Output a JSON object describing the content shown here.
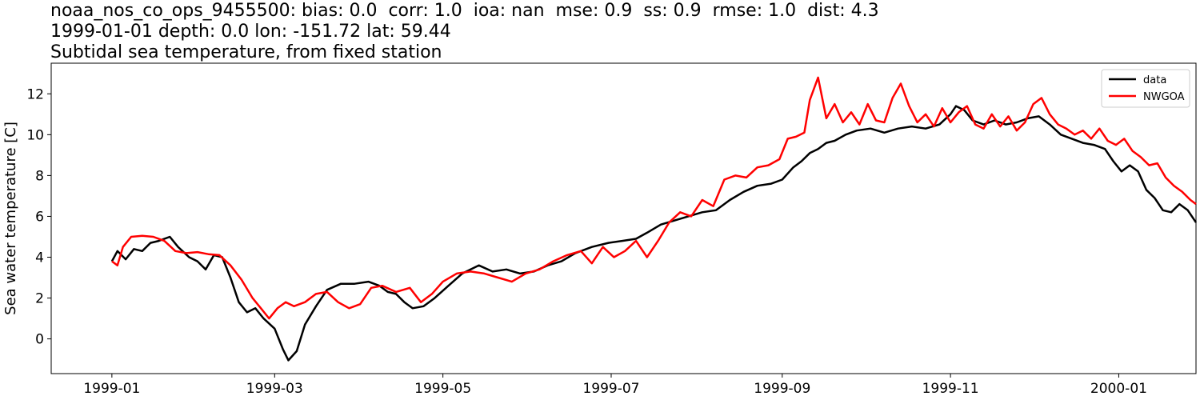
{
  "title_lines": [
    "noaa_nos_co_ops_9455500: bias: 0.0  corr: 1.0  ioa: nan  mse: 0.9  ss: 0.9  rmse: 1.0  dist: 4.3",
    "1999-01-01 depth: 0.0 lon: -151.72 lat: 59.44",
    "Subtidal sea temperature, from fixed station"
  ],
  "chart_data": {
    "type": "line",
    "title": "noaa_nos_co_ops_9455500: bias: 0.0  corr: 1.0  ioa: nan  mse: 0.9  ss: 0.9  rmse: 1.0  dist: 4.3\n1999-01-01 depth: 0.0 lon: -151.72 lat: 59.44\nSubtidal sea temperature, from fixed station",
    "xlabel": "",
    "ylabel": "Sea water temperature [C]",
    "xlim": [
      "1998-12-10",
      "2000-01-29"
    ],
    "ylim": [
      -1.7,
      13.5
    ],
    "x_ticks": [
      "1999-01",
      "1999-03",
      "1999-05",
      "1999-07",
      "1999-09",
      "1999-11",
      "2000-01"
    ],
    "y_ticks": [
      0,
      2,
      4,
      6,
      8,
      10,
      12
    ],
    "grid": false,
    "legend_position": "top-right",
    "series": [
      {
        "name": "data",
        "color": "#000000",
        "points": [
          [
            "1999-01-01",
            3.8
          ],
          [
            "1999-01-03",
            4.3
          ],
          [
            "1999-01-06",
            3.9
          ],
          [
            "1999-01-09",
            4.4
          ],
          [
            "1999-01-12",
            4.3
          ],
          [
            "1999-01-15",
            4.7
          ],
          [
            "1999-01-18",
            4.8
          ],
          [
            "1999-01-22",
            5.0
          ],
          [
            "1999-01-25",
            4.5
          ],
          [
            "1999-01-29",
            4.0
          ],
          [
            "1999-02-01",
            3.8
          ],
          [
            "1999-02-04",
            3.4
          ],
          [
            "1999-02-07",
            4.1
          ],
          [
            "1999-02-10",
            4.0
          ],
          [
            "1999-02-13",
            3.0
          ],
          [
            "1999-02-16",
            1.8
          ],
          [
            "1999-02-19",
            1.3
          ],
          [
            "1999-02-22",
            1.5
          ],
          [
            "1999-02-25",
            1.0
          ],
          [
            "1999-03-01",
            0.5
          ],
          [
            "1999-03-04",
            -0.5
          ],
          [
            "1999-03-06",
            -1.05
          ],
          [
            "1999-03-09",
            -0.6
          ],
          [
            "1999-03-12",
            0.7
          ],
          [
            "1999-03-16",
            1.6
          ],
          [
            "1999-03-20",
            2.4
          ],
          [
            "1999-03-25",
            2.7
          ],
          [
            "1999-03-30",
            2.7
          ],
          [
            "1999-04-04",
            2.8
          ],
          [
            "1999-04-08",
            2.6
          ],
          [
            "1999-04-11",
            2.3
          ],
          [
            "1999-04-14",
            2.2
          ],
          [
            "1999-04-17",
            1.8
          ],
          [
            "1999-04-20",
            1.5
          ],
          [
            "1999-04-24",
            1.6
          ],
          [
            "1999-04-28",
            2.0
          ],
          [
            "1999-05-03",
            2.6
          ],
          [
            "1999-05-08",
            3.2
          ],
          [
            "1999-05-14",
            3.6
          ],
          [
            "1999-05-19",
            3.3
          ],
          [
            "1999-05-24",
            3.4
          ],
          [
            "1999-05-29",
            3.2
          ],
          [
            "1999-06-03",
            3.3
          ],
          [
            "1999-06-08",
            3.6
          ],
          [
            "1999-06-13",
            3.8
          ],
          [
            "1999-06-18",
            4.2
          ],
          [
            "1999-06-24",
            4.5
          ],
          [
            "1999-06-30",
            4.7
          ],
          [
            "1999-07-05",
            4.8
          ],
          [
            "1999-07-10",
            4.9
          ],
          [
            "1999-07-14",
            5.2
          ],
          [
            "1999-07-19",
            5.6
          ],
          [
            "1999-07-24",
            5.8
          ],
          [
            "1999-07-29",
            6.0
          ],
          [
            "1999-08-03",
            6.2
          ],
          [
            "1999-08-08",
            6.3
          ],
          [
            "1999-08-13",
            6.8
          ],
          [
            "1999-08-18",
            7.2
          ],
          [
            "1999-08-23",
            7.5
          ],
          [
            "1999-08-28",
            7.6
          ],
          [
            "1999-09-01",
            7.8
          ],
          [
            "1999-09-05",
            8.4
          ],
          [
            "1999-09-08",
            8.7
          ],
          [
            "1999-09-11",
            9.1
          ],
          [
            "1999-09-14",
            9.3
          ],
          [
            "1999-09-17",
            9.6
          ],
          [
            "1999-09-20",
            9.7
          ],
          [
            "1999-09-24",
            10.0
          ],
          [
            "1999-09-28",
            10.2
          ],
          [
            "1999-10-03",
            10.3
          ],
          [
            "1999-10-08",
            10.1
          ],
          [
            "1999-10-13",
            10.3
          ],
          [
            "1999-10-18",
            10.4
          ],
          [
            "1999-10-23",
            10.3
          ],
          [
            "1999-10-28",
            10.5
          ],
          [
            "1999-11-01",
            11.0
          ],
          [
            "1999-11-03",
            11.4
          ],
          [
            "1999-11-06",
            11.2
          ],
          [
            "1999-11-09",
            10.7
          ],
          [
            "1999-11-13",
            10.5
          ],
          [
            "1999-11-17",
            10.7
          ],
          [
            "1999-11-21",
            10.5
          ],
          [
            "1999-11-25",
            10.6
          ],
          [
            "1999-11-29",
            10.8
          ],
          [
            "1999-12-03",
            10.9
          ],
          [
            "1999-12-07",
            10.5
          ],
          [
            "1999-12-11",
            10.0
          ],
          [
            "1999-12-15",
            9.8
          ],
          [
            "1999-12-19",
            9.6
          ],
          [
            "1999-12-23",
            9.5
          ],
          [
            "1999-12-27",
            9.3
          ],
          [
            "1999-12-30",
            8.7
          ],
          [
            "2000-01-02",
            8.2
          ],
          [
            "2000-01-05",
            8.5
          ],
          [
            "2000-01-08",
            8.2
          ],
          [
            "2000-01-11",
            7.3
          ],
          [
            "2000-01-14",
            6.9
          ],
          [
            "2000-01-17",
            6.3
          ],
          [
            "2000-01-20",
            6.2
          ],
          [
            "2000-01-23",
            6.6
          ],
          [
            "2000-01-26",
            6.3
          ],
          [
            "2000-01-29",
            5.7
          ]
        ]
      },
      {
        "name": "NWGOA",
        "color": "#ff0000",
        "points": [
          [
            "1999-01-01",
            3.8
          ],
          [
            "1999-01-03",
            3.6
          ],
          [
            "1999-01-05",
            4.5
          ],
          [
            "1999-01-08",
            5.0
          ],
          [
            "1999-01-12",
            5.05
          ],
          [
            "1999-01-16",
            5.0
          ],
          [
            "1999-01-20",
            4.8
          ],
          [
            "1999-01-24",
            4.3
          ],
          [
            "1999-01-28",
            4.2
          ],
          [
            "1999-02-01",
            4.25
          ],
          [
            "1999-02-05",
            4.15
          ],
          [
            "1999-02-09",
            4.1
          ],
          [
            "1999-02-13",
            3.6
          ],
          [
            "1999-02-17",
            2.9
          ],
          [
            "1999-02-21",
            2.0
          ],
          [
            "1999-02-24",
            1.5
          ],
          [
            "1999-02-27",
            1.0
          ],
          [
            "1999-03-02",
            1.5
          ],
          [
            "1999-03-05",
            1.8
          ],
          [
            "1999-03-08",
            1.6
          ],
          [
            "1999-03-12",
            1.8
          ],
          [
            "1999-03-16",
            2.2
          ],
          [
            "1999-03-20",
            2.3
          ],
          [
            "1999-03-24",
            1.8
          ],
          [
            "1999-03-28",
            1.5
          ],
          [
            "1999-04-01",
            1.7
          ],
          [
            "1999-04-05",
            2.5
          ],
          [
            "1999-04-09",
            2.6
          ],
          [
            "1999-04-14",
            2.3
          ],
          [
            "1999-04-19",
            2.5
          ],
          [
            "1999-04-23",
            1.8
          ],
          [
            "1999-04-27",
            2.2
          ],
          [
            "1999-05-01",
            2.8
          ],
          [
            "1999-05-06",
            3.2
          ],
          [
            "1999-05-11",
            3.3
          ],
          [
            "1999-05-16",
            3.2
          ],
          [
            "1999-05-21",
            3.0
          ],
          [
            "1999-05-26",
            2.8
          ],
          [
            "1999-05-31",
            3.2
          ],
          [
            "1999-06-05",
            3.4
          ],
          [
            "1999-06-10",
            3.8
          ],
          [
            "1999-06-15",
            4.1
          ],
          [
            "1999-06-20",
            4.3
          ],
          [
            "1999-06-24",
            3.7
          ],
          [
            "1999-06-28",
            4.5
          ],
          [
            "1999-07-02",
            4.0
          ],
          [
            "1999-07-06",
            4.3
          ],
          [
            "1999-07-10",
            4.8
          ],
          [
            "1999-07-14",
            4.0
          ],
          [
            "1999-07-18",
            4.8
          ],
          [
            "1999-07-22",
            5.7
          ],
          [
            "1999-07-26",
            6.2
          ],
          [
            "1999-07-30",
            6.0
          ],
          [
            "1999-08-03",
            6.8
          ],
          [
            "1999-08-07",
            6.5
          ],
          [
            "1999-08-11",
            7.8
          ],
          [
            "1999-08-15",
            8.0
          ],
          [
            "1999-08-19",
            7.9
          ],
          [
            "1999-08-23",
            8.4
          ],
          [
            "1999-08-27",
            8.5
          ],
          [
            "1999-08-31",
            8.8
          ],
          [
            "1999-09-03",
            9.8
          ],
          [
            "1999-09-06",
            9.9
          ],
          [
            "1999-09-09",
            10.1
          ],
          [
            "1999-09-11",
            11.7
          ],
          [
            "1999-09-14",
            12.8
          ],
          [
            "1999-09-17",
            10.8
          ],
          [
            "1999-09-20",
            11.5
          ],
          [
            "1999-09-23",
            10.6
          ],
          [
            "1999-09-26",
            11.1
          ],
          [
            "1999-09-29",
            10.5
          ],
          [
            "1999-10-02",
            11.5
          ],
          [
            "1999-10-05",
            10.7
          ],
          [
            "1999-10-08",
            10.6
          ],
          [
            "1999-10-11",
            11.8
          ],
          [
            "1999-10-14",
            12.5
          ],
          [
            "1999-10-17",
            11.4
          ],
          [
            "1999-10-20",
            10.6
          ],
          [
            "1999-10-23",
            11.0
          ],
          [
            "1999-10-26",
            10.4
          ],
          [
            "1999-10-29",
            11.3
          ],
          [
            "1999-11-01",
            10.6
          ],
          [
            "1999-11-04",
            11.1
          ],
          [
            "1999-11-07",
            11.4
          ],
          [
            "1999-11-10",
            10.5
          ],
          [
            "1999-11-13",
            10.3
          ],
          [
            "1999-11-16",
            11.0
          ],
          [
            "1999-11-19",
            10.4
          ],
          [
            "1999-11-22",
            10.9
          ],
          [
            "1999-11-25",
            10.2
          ],
          [
            "1999-11-28",
            10.6
          ],
          [
            "1999-12-01",
            11.5
          ],
          [
            "1999-12-04",
            11.8
          ],
          [
            "1999-12-07",
            11.0
          ],
          [
            "1999-12-10",
            10.5
          ],
          [
            "1999-12-13",
            10.3
          ],
          [
            "1999-12-16",
            10.0
          ],
          [
            "1999-12-19",
            10.2
          ],
          [
            "1999-12-22",
            9.8
          ],
          [
            "1999-12-25",
            10.3
          ],
          [
            "1999-12-28",
            9.7
          ],
          [
            "1999-12-31",
            9.5
          ],
          [
            "2000-01-03",
            9.8
          ],
          [
            "2000-01-06",
            9.2
          ],
          [
            "2000-01-09",
            8.9
          ],
          [
            "2000-01-12",
            8.5
          ],
          [
            "2000-01-15",
            8.6
          ],
          [
            "2000-01-18",
            7.9
          ],
          [
            "2000-01-21",
            7.5
          ],
          [
            "2000-01-24",
            7.2
          ],
          [
            "2000-01-27",
            6.8
          ],
          [
            "2000-01-29",
            6.6
          ]
        ]
      }
    ]
  }
}
